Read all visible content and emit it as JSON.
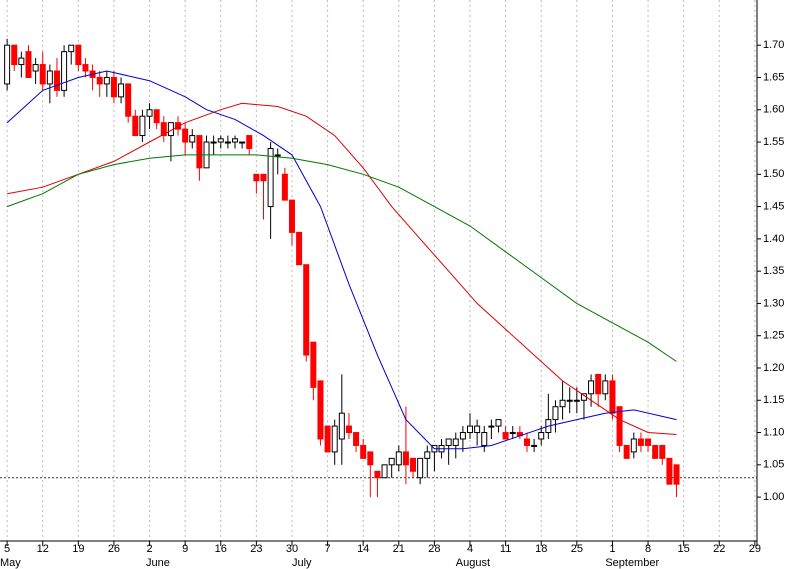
{
  "chart_data": {
    "type": "candlestick",
    "up_color": "#000000",
    "down_color": "#ff0000",
    "open": [
      1.64,
      1.7,
      1.67,
      1.69,
      1.66,
      1.67,
      1.64,
      1.66,
      1.63,
      1.69,
      1.7,
      1.67,
      1.66,
      1.65,
      1.64,
      1.65,
      1.62,
      1.64,
      1.59,
      1.56,
      1.59,
      1.6,
      1.58,
      1.56,
      1.58,
      1.57,
      1.55,
      1.56,
      1.51,
      1.55,
      1.55,
      1.55,
      1.55,
      1.55,
      1.56,
      1.5,
      1.5,
      1.45,
      1.53,
      1.5,
      1.46,
      1.41,
      1.36,
      1.24,
      1.18,
      1.11,
      1.07,
      1.09,
      1.11,
      1.1,
      1.08,
      1.07,
      1.04,
      1.03,
      1.05,
      1.05,
      1.07,
      1.06,
      1.03,
      1.06,
      1.07,
      1.07,
      1.08,
      1.08,
      1.09,
      1.1,
      1.1,
      1.08,
      1.11,
      1.11,
      1.1,
      1.1,
      1.1,
      1.09,
      1.08,
      1.09,
      1.1,
      1.12,
      1.14,
      1.15,
      1.15,
      1.15,
      1.16,
      1.19,
      1.16,
      1.18,
      1.14,
      1.08,
      1.07,
      1.09,
      1.09,
      1.08,
      1.08,
      1.06,
      1.05
    ],
    "high": [
      1.71,
      1.7,
      1.69,
      1.7,
      1.68,
      1.69,
      1.67,
      1.68,
      1.7,
      1.7,
      1.7,
      1.68,
      1.67,
      1.66,
      1.66,
      1.66,
      1.65,
      1.64,
      1.6,
      1.6,
      1.61,
      1.6,
      1.59,
      1.58,
      1.59,
      1.58,
      1.57,
      1.56,
      1.56,
      1.56,
      1.56,
      1.56,
      1.56,
      1.55,
      1.56,
      1.5,
      1.5,
      1.55,
      1.54,
      1.51,
      1.46,
      1.41,
      1.36,
      1.24,
      1.18,
      1.11,
      1.12,
      1.19,
      1.13,
      1.1,
      1.09,
      1.07,
      1.04,
      1.05,
      1.06,
      1.08,
      1.14,
      1.06,
      1.06,
      1.08,
      1.08,
      1.09,
      1.09,
      1.1,
      1.11,
      1.13,
      1.12,
      1.11,
      1.12,
      1.12,
      1.11,
      1.11,
      1.11,
      1.1,
      1.09,
      1.11,
      1.16,
      1.15,
      1.18,
      1.17,
      1.17,
      1.16,
      1.19,
      1.19,
      1.19,
      1.19,
      1.14,
      1.08,
      1.1,
      1.1,
      1.09,
      1.08,
      1.08,
      1.06,
      1.05
    ],
    "low": [
      1.63,
      1.66,
      1.65,
      1.65,
      1.64,
      1.63,
      1.61,
      1.62,
      1.62,
      1.67,
      1.66,
      1.65,
      1.63,
      1.62,
      1.62,
      1.61,
      1.61,
      1.58,
      1.56,
      1.55,
      1.57,
      1.57,
      1.55,
      1.52,
      1.56,
      1.53,
      1.54,
      1.49,
      1.51,
      1.53,
      1.54,
      1.54,
      1.54,
      1.54,
      1.53,
      1.47,
      1.43,
      1.4,
      1.5,
      1.46,
      1.39,
      1.36,
      1.21,
      1.15,
      1.08,
      1.07,
      1.05,
      1.05,
      1.09,
      1.07,
      1.06,
      1.0,
      1.0,
      1.03,
      1.03,
      1.04,
      1.02,
      1.03,
      1.02,
      1.03,
      1.04,
      1.06,
      1.05,
      1.06,
      1.07,
      1.09,
      1.08,
      1.07,
      1.09,
      1.1,
      1.09,
      1.09,
      1.09,
      1.07,
      1.07,
      1.08,
      1.09,
      1.1,
      1.12,
      1.13,
      1.13,
      1.12,
      1.14,
      1.14,
      1.15,
      1.12,
      1.07,
      1.06,
      1.06,
      1.07,
      1.07,
      1.06,
      1.05,
      1.02,
      1.0
    ],
    "close": [
      1.7,
      1.67,
      1.68,
      1.65,
      1.67,
      1.64,
      1.66,
      1.63,
      1.69,
      1.7,
      1.67,
      1.66,
      1.65,
      1.64,
      1.65,
      1.62,
      1.64,
      1.59,
      1.56,
      1.59,
      1.6,
      1.58,
      1.56,
      1.58,
      1.57,
      1.55,
      1.56,
      1.51,
      1.55,
      1.55,
      1.555,
      1.55,
      1.555,
      1.55,
      1.54,
      1.49,
      1.49,
      1.54,
      1.53,
      1.46,
      1.41,
      1.36,
      1.22,
      1.17,
      1.09,
      1.07,
      1.11,
      1.13,
      1.1,
      1.08,
      1.06,
      1.05,
      1.03,
      1.05,
      1.06,
      1.07,
      1.05,
      1.04,
      1.06,
      1.07,
      1.08,
      1.08,
      1.09,
      1.09,
      1.1,
      1.11,
      1.11,
      1.1,
      1.11,
      1.12,
      1.09,
      1.1,
      1.095,
      1.08,
      1.08,
      1.1,
      1.12,
      1.14,
      1.15,
      1.15,
      1.15,
      1.16,
      1.18,
      1.16,
      1.18,
      1.13,
      1.08,
      1.06,
      1.09,
      1.08,
      1.08,
      1.06,
      1.06,
      1.02,
      1.02
    ],
    "overlays": [
      {
        "color": "#0000cc",
        "x": [
          0,
          5,
          10,
          14,
          20,
          25,
          28,
          32,
          36,
          40,
          44,
          48,
          52,
          56,
          60,
          64,
          68,
          72,
          76,
          80,
          84,
          88,
          94
        ],
        "values": [
          1.58,
          1.63,
          1.65,
          1.66,
          1.645,
          1.62,
          1.6,
          1.585,
          1.56,
          1.53,
          1.45,
          1.33,
          1.22,
          1.12,
          1.075,
          1.075,
          1.08,
          1.095,
          1.11,
          1.12,
          1.13,
          1.135,
          1.12
        ]
      },
      {
        "color": "#dd0000",
        "x": [
          0,
          5,
          10,
          15,
          20,
          25,
          30,
          33,
          38,
          42,
          46,
          50,
          54,
          58,
          62,
          66,
          70,
          74,
          78,
          82,
          86,
          90,
          94
        ],
        "values": [
          1.47,
          1.48,
          1.5,
          1.52,
          1.55,
          1.58,
          1.6,
          1.61,
          1.605,
          1.59,
          1.56,
          1.51,
          1.45,
          1.4,
          1.35,
          1.3,
          1.26,
          1.22,
          1.18,
          1.15,
          1.12,
          1.1,
          1.097
        ]
      },
      {
        "color": "#007700",
        "x": [
          0,
          5,
          10,
          15,
          20,
          25,
          30,
          35,
          40,
          45,
          50,
          55,
          60,
          65,
          70,
          75,
          80,
          85,
          90,
          94
        ],
        "values": [
          1.45,
          1.47,
          1.5,
          1.515,
          1.525,
          1.53,
          1.53,
          1.53,
          1.525,
          1.515,
          1.5,
          1.48,
          1.45,
          1.42,
          1.38,
          1.34,
          1.3,
          1.27,
          1.24,
          1.21
        ]
      }
    ],
    "reference_line": 1.03,
    "ylim": [
      0.932,
      1.77
    ],
    "yticks": [
      {
        "value": 1.0,
        "label": "1.00"
      },
      {
        "value": 1.05,
        "label": "1.05"
      },
      {
        "value": 1.1,
        "label": "1.10"
      },
      {
        "value": 1.15,
        "label": "1.15"
      },
      {
        "value": 1.2,
        "label": "1.20"
      },
      {
        "value": 1.25,
        "label": "1.25"
      },
      {
        "value": 1.3,
        "label": "1.30"
      },
      {
        "value": 1.35,
        "label": "1.35"
      },
      {
        "value": 1.4,
        "label": "1.40"
      },
      {
        "value": 1.45,
        "label": "1.45"
      },
      {
        "value": 1.5,
        "label": "1.50"
      },
      {
        "value": 1.55,
        "label": "1.55"
      },
      {
        "value": 1.6,
        "label": "1.60"
      },
      {
        "value": 1.65,
        "label": "1.65"
      },
      {
        "value": 1.7,
        "label": "1.70"
      }
    ],
    "xlim": [
      -1,
      105.3
    ],
    "xticks": [
      {
        "value": 0,
        "label": "5"
      },
      {
        "value": 5,
        "label": "12"
      },
      {
        "value": 10,
        "label": "19"
      },
      {
        "value": 15,
        "label": "26"
      },
      {
        "value": 20,
        "label": "2"
      },
      {
        "value": 25,
        "label": "9"
      },
      {
        "value": 30,
        "label": "16"
      },
      {
        "value": 35,
        "label": "23"
      },
      {
        "value": 40,
        "label": "30"
      },
      {
        "value": 45,
        "label": "7"
      },
      {
        "value": 50,
        "label": "14"
      },
      {
        "value": 55,
        "label": "21"
      },
      {
        "value": 60,
        "label": "28"
      },
      {
        "value": 65,
        "label": "4"
      },
      {
        "value": 70,
        "label": "11"
      },
      {
        "value": 75,
        "label": "18"
      },
      {
        "value": 80,
        "label": "25"
      },
      {
        "value": 85,
        "label": "1"
      },
      {
        "value": 90,
        "label": "8"
      },
      {
        "value": 95,
        "label": "15"
      },
      {
        "value": 100,
        "label": "22"
      },
      {
        "value": 105,
        "label": "29"
      }
    ],
    "months": [
      {
        "value": -1,
        "label": "May"
      },
      {
        "value": 19.5,
        "label": "June"
      },
      {
        "value": 40,
        "label": "July"
      },
      {
        "value": 63,
        "label": "August"
      },
      {
        "value": 84,
        "label": "September"
      }
    ],
    "grid": true
  }
}
